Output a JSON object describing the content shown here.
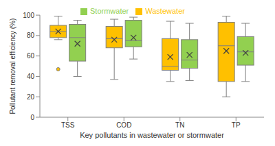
{
  "chart_data": {
    "type": "box",
    "categories": [
      "TSS",
      "COD",
      "TN",
      "TP"
    ],
    "x_label": "Key pollutants in wastewater or stormwater",
    "y_label": "Pollutant removal efficiency (%)",
    "ylim": [
      0,
      100
    ],
    "yticks": [
      0,
      20,
      40,
      60,
      80,
      100
    ],
    "grid": false,
    "legend": "top",
    "series": [
      {
        "name": "Wastewater",
        "color": "#FFC000",
        "min": [
          76,
          37,
          35,
          20
        ],
        "q1": [
          78,
          68,
          46,
          35
        ],
        "median": [
          84,
          77,
          50,
          70
        ],
        "q3": [
          90,
          89,
          77,
          93
        ],
        "max": [
          99,
          96,
          94,
          99
        ],
        "mean": [
          84,
          76,
          59,
          65
        ],
        "outliers": [
          [
            47
          ],
          [],
          [],
          []
        ]
      },
      {
        "name": "Stormwater",
        "color": "#92D050",
        "min": [
          40,
          57,
          36,
          35
        ],
        "q1": [
          55,
          69,
          48,
          51
        ],
        "median": [
          78,
          75,
          56,
          64
        ],
        "q3": [
          91,
          95,
          76,
          79
        ],
        "max": [
          95,
          98,
          92,
          92
        ],
        "mean": [
          72,
          78,
          61,
          63
        ],
        "outliers": [
          [],
          [],
          [],
          []
        ]
      }
    ]
  }
}
